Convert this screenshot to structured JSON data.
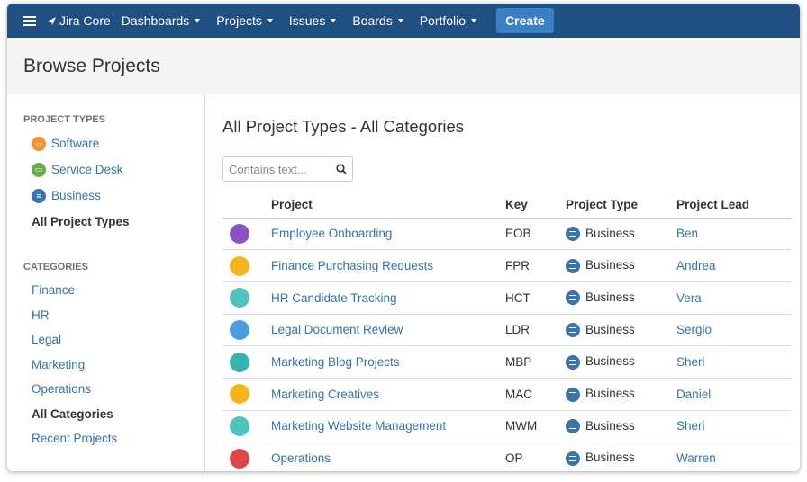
{
  "nav": {
    "logo": "Jira Core",
    "menus": [
      "Dashboards",
      "Projects",
      "Issues",
      "Boards",
      "Portfolio"
    ],
    "create": "Create"
  },
  "page_title": "Browse Projects",
  "sidebar": {
    "types_heading": "PROJECT TYPES",
    "types": [
      {
        "label": "Software",
        "color": "#f79232"
      },
      {
        "label": "Service Desk",
        "color": "#67ab49"
      },
      {
        "label": "Business",
        "color": "#3b73af"
      }
    ],
    "all_types": "All Project Types",
    "categories_heading": "CATEGORIES",
    "categories": [
      "Finance",
      "HR",
      "Legal",
      "Marketing",
      "Operations"
    ],
    "all_categories": "All Categories",
    "recent": "Recent Projects"
  },
  "main": {
    "title": "All Project Types - All Categories",
    "search_placeholder": "Contains text...",
    "columns": [
      "Project",
      "Key",
      "Project Type",
      "Project Lead"
    ],
    "rows": [
      {
        "icon": "rocket-avatar",
        "color": "#8954c1",
        "name": "Employee Onboarding",
        "key": "EOB",
        "type": "Business",
        "lead": "Ben"
      },
      {
        "icon": "wallet-avatar",
        "color": "#f6b31b",
        "name": "Finance Purchasing Requests",
        "key": "FPR",
        "type": "Business",
        "lead": "Andrea"
      },
      {
        "icon": "person-avatar",
        "color": "#4fc3c0",
        "name": "HR Candidate Tracking",
        "key": "HCT",
        "type": "Business",
        "lead": "Vera"
      },
      {
        "icon": "notepad-avatar",
        "color": "#4a9ee0",
        "name": "Legal Document Review",
        "key": "LDR",
        "type": "Business",
        "lead": "Sergio"
      },
      {
        "icon": "robot-avatar",
        "color": "#36b5b0",
        "name": "Marketing Blog Projects",
        "key": "MBP",
        "type": "Business",
        "lead": "Sheri"
      },
      {
        "icon": "easel-avatar",
        "color": "#f6b31b",
        "name": "Marketing Creatives",
        "key": "MAC",
        "type": "Business",
        "lead": "Daniel"
      },
      {
        "icon": "person-avatar",
        "color": "#4fc3c0",
        "name": "Marketing Website Management",
        "key": "MWM",
        "type": "Business",
        "lead": "Sheri"
      },
      {
        "icon": "gear-avatar",
        "color": "#e0454a",
        "name": "Operations",
        "key": "OP",
        "type": "Business",
        "lead": "Warren"
      }
    ]
  }
}
